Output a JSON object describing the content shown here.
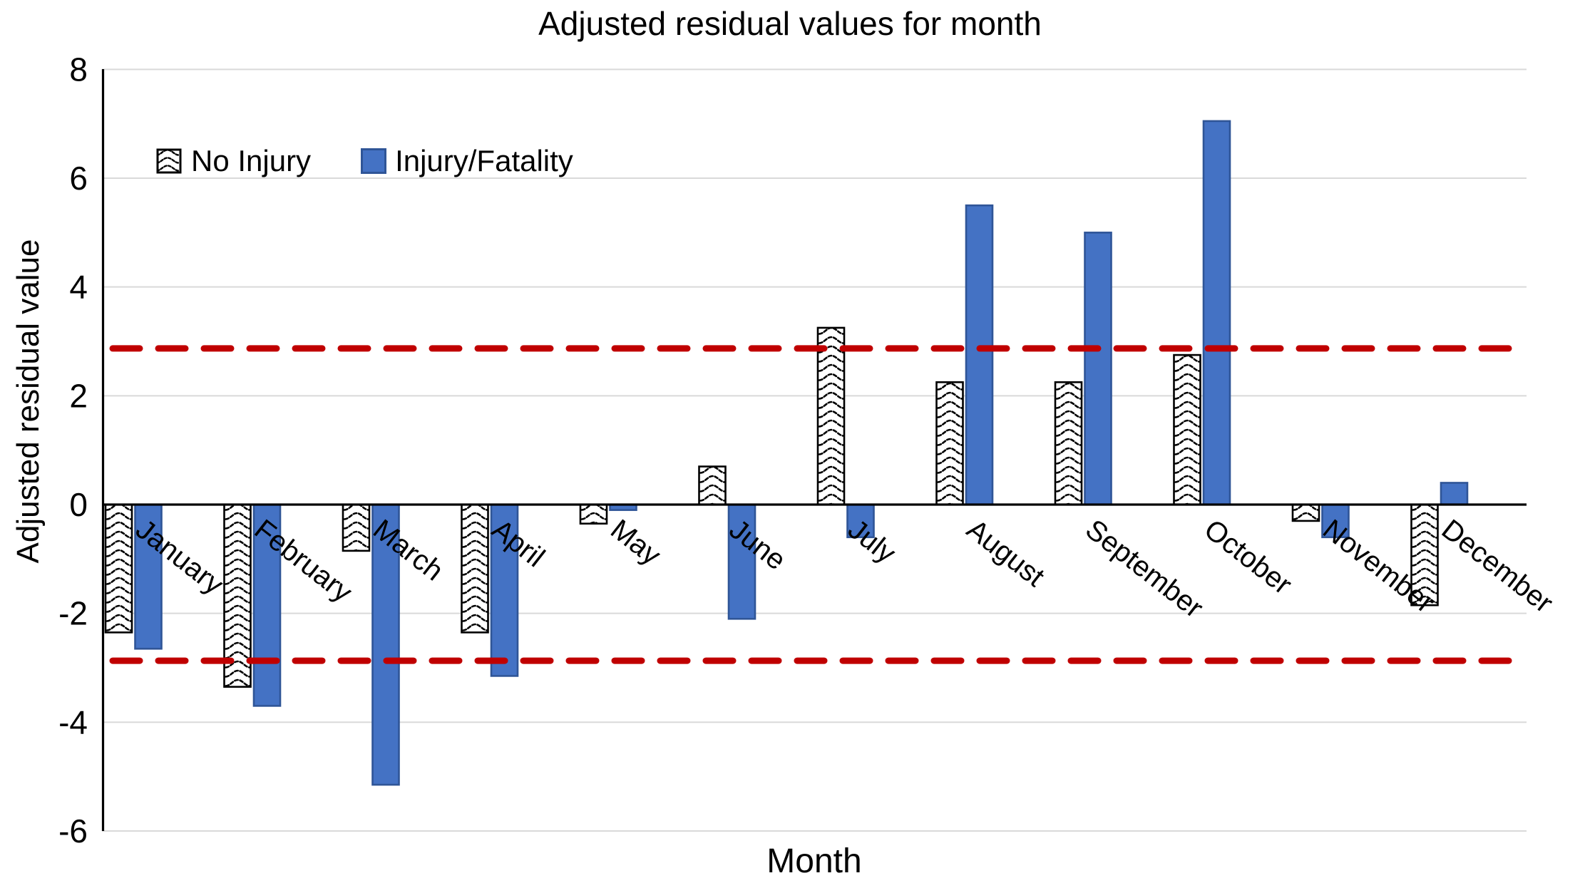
{
  "title": "Adjusted residual values for month",
  "y_axis": {
    "title": "Adjusted residual value",
    "min": -6,
    "max": 8,
    "step": 2,
    "tick_labels": [
      "8",
      "6",
      "4",
      "2",
      "0",
      "-2",
      "-4",
      "-6"
    ],
    "tick_values": [
      8,
      6,
      4,
      2,
      0,
      -2,
      -4,
      -6
    ]
  },
  "x_axis": {
    "title": "Month"
  },
  "legend": {
    "items": [
      {
        "label": "No Injury",
        "swatch": "black-wave-pattern-on-white"
      },
      {
        "label": "Injury/Fatality",
        "swatch": "solid-blue"
      }
    ],
    "position": "top-left-inside"
  },
  "reference_lines": {
    "values": [
      2.87,
      -2.87
    ],
    "style": "dashed",
    "color": "#C00000"
  },
  "colors": {
    "injury_bar_fill": "#4472C4",
    "injury_bar_border": "#2F5597",
    "no_injury_bar_fill": "#FFFFFF",
    "no_injury_bar_border": "#000000",
    "reference_line": "#C00000",
    "gridline": "#D9D9D9",
    "axis": "#000000",
    "text": "#000000",
    "background": "#FFFFFF"
  },
  "chart_data": {
    "type": "bar",
    "title": "Adjusted residual values for month",
    "xlabel": "Month",
    "ylabel": "Adjusted residual value",
    "ylim": [
      -6,
      8
    ],
    "ytick_step": 2,
    "grid": true,
    "legend_position": "top-left-inside",
    "categories": [
      "January",
      "February",
      "March",
      "April",
      "May",
      "June",
      "July",
      "August",
      "September",
      "October",
      "November",
      "December"
    ],
    "series": [
      {
        "name": "No Injury",
        "style": "white-with-black-wave-pattern",
        "values": [
          -2.35,
          -3.35,
          -0.85,
          -2.35,
          -0.35,
          0.7,
          3.25,
          2.25,
          2.25,
          2.75,
          -0.3,
          -1.85
        ]
      },
      {
        "name": "Injury/Fatality",
        "style": "solid-blue",
        "values": [
          -2.65,
          -3.7,
          -5.15,
          -3.15,
          -0.1,
          -2.1,
          -0.6,
          5.5,
          5.0,
          7.05,
          -0.6,
          0.4
        ]
      }
    ],
    "reference_lines": [
      2.87,
      -2.87
    ]
  }
}
